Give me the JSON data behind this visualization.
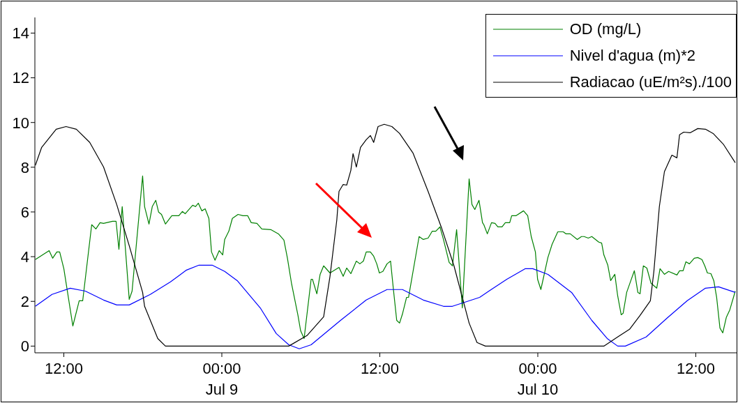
{
  "chart_data": {
    "type": "line",
    "xlim": [
      "--07-08T09:48",
      "--07-10T15:06"
    ],
    "ylim": [
      -0.3,
      14.7
    ],
    "xticks": [
      {
        "value": "--07-08T12:00",
        "label": "12:00"
      },
      {
        "value": "--07-09T00:00",
        "label": "00:00\nJul 9"
      },
      {
        "value": "--07-09T12:00",
        "label": "12:00"
      },
      {
        "value": "--07-10T00:00",
        "label": "00:00\nJul 10"
      },
      {
        "value": "--07-10T12:00",
        "label": "12:00"
      }
    ],
    "yticks": [
      0,
      2,
      4,
      6,
      8,
      10,
      12,
      14
    ],
    "legend": "top right",
    "series": [
      {
        "name": "OD (mg/L)",
        "color": "#008000",
        "x": [
          "--07-08T09:50",
          "--07-08T10:53",
          "--07-08T11:09",
          "--07-08T11:28",
          "--07-08T11:41",
          "--07-08T12:00",
          "--07-08T12:41",
          "--07-08T13:10",
          "--07-08T13:26",
          "--07-08T14:07",
          "--07-08T14:26",
          "--07-08T14:45",
          "--07-08T15:01",
          "--07-08T15:42",
          "--07-08T15:58",
          "--07-08T16:11",
          "--07-08T16:26",
          "--07-08T16:58",
          "--07-08T17:11",
          "--07-08T17:59",
          "--07-08T18:08",
          "--07-08T18:28",
          "--07-08T18:43",
          "--07-08T18:59",
          "--07-08T19:12",
          "--07-08T19:25",
          "--07-08T19:43",
          "--07-08T20:12",
          "--07-08T20:44",
          "--07-08T21:00",
          "--07-08T21:13",
          "--07-08T21:47",
          "--07-08T22:00",
          "--07-08T22:13",
          "--07-08T22:29",
          "--07-08T22:44",
          "--07-08T23:01",
          "--07-08T23:13",
          "--07-08T23:29",
          "--07-08T23:48",
          "--07-09T00:04",
          "--07-09T00:13",
          "--07-09T00:32",
          "--07-09T00:48",
          "--07-09T01:14",
          "--07-09T01:36",
          "--07-09T01:58",
          "--07-09T02:14",
          "--07-09T02:40",
          "--07-09T03:02",
          "--07-09T03:43",
          "--07-09T04:18",
          "--07-09T04:43",
          "--07-09T04:59",
          "--07-09T05:18",
          "--07-09T05:47",
          "--07-09T05:59",
          "--07-09T06:15",
          "--07-09T06:47",
          "--07-09T06:53",
          "--07-09T07:13",
          "--07-09T07:28",
          "--07-09T07:44",
          "--07-09T08:13",
          "--07-09T08:54",
          "--07-09T09:13",
          "--07-09T09:29",
          "--07-09T09:48",
          "--07-09T10:13",
          "--07-09T10:29",
          "--07-09T10:45",
          "--07-09T10:58",
          "--07-09T11:17",
          "--07-09T11:32",
          "--07-09T11:46",
          "--07-09T11:58",
          "--07-09T12:14",
          "--07-09T12:33",
          "--07-09T12:49",
          "--07-09T13:02",
          "--07-09T13:17",
          "--07-09T13:30",
          "--07-09T13:43",
          "--07-09T14:02",
          "--07-09T14:11",
          "--07-09T14:59",
          "--07-09T15:18",
          "--07-09T15:40",
          "--07-09T15:59",
          "--07-09T16:15",
          "--07-09T16:34",
          "--07-09T16:50",
          "--07-09T17:16",
          "--07-09T17:31",
          "--07-09T17:50",
          "--07-09T18:16",
          "--07-09T18:47",
          "--07-09T19:00",
          "--07-09T19:13",
          "--07-09T19:32",
          "--07-09T19:48",
          "--07-09T19:54",
          "--07-09T20:10",
          "--07-09T20:29",
          "--07-09T20:45",
          "--07-09T20:58",
          "--07-09T21:17",
          "--07-09T21:32",
          "--07-09T21:52",
          "--07-09T22:01",
          "--07-09T22:20",
          "--07-09T22:55",
          "--07-09T23:14",
          "--07-09T23:30",
          "--07-09T23:49",
          "--07-09T23:59",
          "--07-10T00:14",
          "--07-10T00:46",
          "--07-10T01:05",
          "--07-10T01:31",
          "--07-10T01:56",
          "--07-10T02:09",
          "--07-10T02:28",
          "--07-10T03:00",
          "--07-10T03:19",
          "--07-10T03:31",
          "--07-10T03:50",
          "--07-10T04:06",
          "--07-10T04:38",
          "--07-10T04:51",
          "--07-10T05:01",
          "--07-10T05:19",
          "--07-10T05:32",
          "--07-10T05:51",
          "--07-10T06:04",
          "--07-10T06:20",
          "--07-10T06:29",
          "--07-10T06:45",
          "--07-10T07:04",
          "--07-10T07:20",
          "--07-10T07:36",
          "--07-10T07:46",
          "--07-10T08:01",
          "--07-10T08:17",
          "--07-10T08:36",
          "--07-10T09:02",
          "--07-10T09:17",
          "--07-10T09:37",
          "--07-10T09:56",
          "--07-10T10:34",
          "--07-10T10:46",
          "--07-10T11:02",
          "--07-10T11:15",
          "--07-10T11:31",
          "--07-10T11:53",
          "--07-10T12:09",
          "--07-10T12:28",
          "--07-10T12:41",
          "--07-10T12:53",
          "--07-10T13:09",
          "--07-10T13:22",
          "--07-10T13:35",
          "--07-10T13:50",
          "--07-10T14:03",
          "--07-10T14:19",
          "--07-10T14:35",
          "--07-10T15:00"
        ],
        "values": [
          3.87,
          4.27,
          3.93,
          4.21,
          4.21,
          3.46,
          0.9,
          2.03,
          2.03,
          5.43,
          5.24,
          5.52,
          5.49,
          5.58,
          5.58,
          4.33,
          6.24,
          2.09,
          2.46,
          7.61,
          6.24,
          5.46,
          6.24,
          6.52,
          5.99,
          5.89,
          5.46,
          5.83,
          5.83,
          6.02,
          5.92,
          6.3,
          6.24,
          6.39,
          6.05,
          6.14,
          5.71,
          4.21,
          3.84,
          4.27,
          4.08,
          4.77,
          5.14,
          5.71,
          5.89,
          5.83,
          5.83,
          5.52,
          5.49,
          5.24,
          5.21,
          5.02,
          4.74,
          3.93,
          2.78,
          1.37,
          0.69,
          0.34,
          2.99,
          2.99,
          2.34,
          3.21,
          3.59,
          3.27,
          3.52,
          3.12,
          3.49,
          3.24,
          3.8,
          3.68,
          3.8,
          4.21,
          4.21,
          4.02,
          3.68,
          3.27,
          3.34,
          3.68,
          3.8,
          2.53,
          1.15,
          1.03,
          1.43,
          2.18,
          2.18,
          4.9,
          4.77,
          4.83,
          5.14,
          5.14,
          5.33,
          4.77,
          3.74,
          3.59,
          5.21,
          1.71,
          7.48,
          6.33,
          6.11,
          6.52,
          5.52,
          5.43,
          5.02,
          5.52,
          5.49,
          5.33,
          5.33,
          5.52,
          5.52,
          5.83,
          5.83,
          6.05,
          5.83,
          4.9,
          4.21,
          2.99,
          2.53,
          3.96,
          4.55,
          5.11,
          5.11,
          5.02,
          5.02,
          4.77,
          4.9,
          4.9,
          4.83,
          4.9,
          4.65,
          4.61,
          4.08,
          3.62,
          2.93,
          3.21,
          2.25,
          1.4,
          1.47,
          2.4,
          2.93,
          3.37,
          2.4,
          2.34,
          3.59,
          3.49,
          2.81,
          2.59,
          3.46,
          3.21,
          3.34,
          3.18,
          3.37,
          3.37,
          3.77,
          3.68,
          3.93,
          3.96,
          3.87,
          3.59,
          3.27,
          3.24,
          2.93,
          2.18,
          0.81,
          0.59,
          1.28,
          1.62,
          2.46
        ]
      },
      {
        "name": "Nivel d'agua (m)*2",
        "color": "#0000ff",
        "x": [
          "--07-08T09:50",
          "--07-08T11:06",
          "--07-08T12:29",
          "--07-08T13:38",
          "--07-08T15:01",
          "--07-08T16:01",
          "--07-08T16:58",
          "--07-08T18:34",
          "--07-08T20:06",
          "--07-08T21:19",
          "--07-08T22:16",
          "--07-08T23:16",
          "--07-09T00:13",
          "--07-09T01:10",
          "--07-09T02:55",
          "--07-09T04:08",
          "--07-09T05:05",
          "--07-09T05:53",
          "--07-09T06:47",
          "--07-09T09:01",
          "--07-09T10:58",
          "--07-09T12:33",
          "--07-09T13:43",
          "--07-09T15:18",
          "--07-09T16:50",
          "--07-09T17:31",
          "--07-09T19:35",
          "--07-09T20:17",
          "--07-09T21:39",
          "--07-09T23:02",
          "--07-09T23:37",
          "--07-10T00:46",
          "--07-10T02:34",
          "--07-10T04:06",
          "--07-10T05:16",
          "--07-10T06:04",
          "--07-10T06:39",
          "--07-10T08:14",
          "--07-10T09:49",
          "--07-10T11:21",
          "--07-10T12:44",
          "--07-10T13:44",
          "--07-10T15:00"
        ],
        "values": [
          1.78,
          2.31,
          2.59,
          2.46,
          2.06,
          1.84,
          1.84,
          2.31,
          2.87,
          3.4,
          3.62,
          3.62,
          3.34,
          2.93,
          1.71,
          0.56,
          0.06,
          -0.12,
          0.06,
          1.15,
          2.06,
          2.53,
          2.53,
          2.06,
          1.78,
          1.78,
          2.18,
          2.46,
          2.99,
          3.46,
          3.46,
          3.21,
          2.4,
          1.15,
          0.34,
          0,
          0,
          0.41,
          1.25,
          2.03,
          2.59,
          2.65,
          2.4
        ]
      },
      {
        "name": "Radiacao (uE/m²s)./100",
        "color": "#000000",
        "x": [
          "--07-08T09:50",
          "--07-08T10:19",
          "--07-08T11:25",
          "--07-08T12:10",
          "--07-08T12:57",
          "--07-08T13:58",
          "--07-08T15:01",
          "--07-08T16:01",
          "--07-08T16:58",
          "--07-08T17:59",
          "--07-08T18:08",
          "--07-08T19:08",
          "--07-08T19:43",
          "--07-09T05:05",
          "--07-09T06:28",
          "--07-09T07:44",
          "--07-09T08:13",
          "--07-09T08:44",
          "--07-09T08:54",
          "--07-09T09:13",
          "--07-09T09:29",
          "--07-09T09:48",
          "--07-09T09:58",
          "--07-09T10:13",
          "--07-09T10:32",
          "--07-09T10:58",
          "--07-09T11:17",
          "--07-09T11:32",
          "--07-09T11:52",
          "--07-09T12:20",
          "--07-09T12:55",
          "--07-09T13:30",
          "--07-09T14:31",
          "--07-09T15:40",
          "--07-09T16:41",
          "--07-09T17:38",
          "--07-09T18:47",
          "--07-09T19:23",
          "--07-09T20:01",
          "--07-10T05:01",
          "--07-10T06:04",
          "--07-10T06:58",
          "--07-10T07:46",
          "--07-10T08:33",
          "--07-10T08:49",
          "--07-10T09:14",
          "--07-10T09:37",
          "--07-10T10:11",
          "--07-10T10:34",
          "--07-10T10:46",
          "--07-10T11:05",
          "--07-10T11:34",
          "--07-10T12:09",
          "--07-10T12:44",
          "--07-10T13:19",
          "--07-10T14:07",
          "--07-10T15:00"
        ],
        "values": [
          8.08,
          8.89,
          9.7,
          9.82,
          9.7,
          9.11,
          8.01,
          6.33,
          4.49,
          2.4,
          1.78,
          0.34,
          0,
          0,
          0.47,
          1.31,
          3.12,
          5.64,
          6.92,
          7.23,
          7.2,
          7.86,
          8.61,
          8.01,
          8.89,
          9.23,
          9.42,
          9.11,
          9.82,
          9.92,
          9.82,
          9.51,
          8.64,
          6.92,
          5.3,
          3.59,
          1.03,
          0.16,
          0,
          0,
          0.41,
          0.75,
          1.37,
          2.03,
          3.34,
          6.24,
          7.8,
          8.54,
          8.42,
          9.45,
          9.57,
          9.54,
          9.73,
          9.7,
          9.51,
          9.01,
          8.2
        ]
      }
    ]
  }
}
